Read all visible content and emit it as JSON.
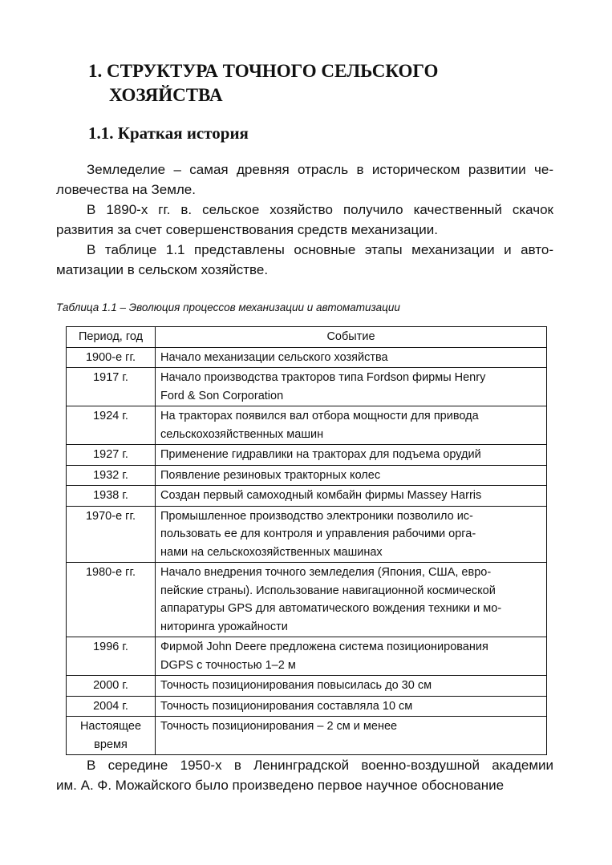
{
  "heading": {
    "line1": "1. СТРУКТУРА ТОЧНОГО СЕЛЬСКОГО",
    "line2": "ХОЗЯЙСТВА"
  },
  "subheading": "1.1. Краткая история",
  "intro_paragraphs": [
    [
      "Земледелие – самая древняя отрасль в историческом развитии че-",
      "ловечества на Земле."
    ],
    [
      "В 1890-х гг. в. сельское хозяйство получило качественный скачок",
      "развития за счет совершенствования средств механизации."
    ],
    [
      "В таблице 1.1 представлены основные этапы механизации и авто-",
      "матизации в сельском хозяйстве."
    ]
  ],
  "table": {
    "caption": "Таблица 1.1 – Эволюция процессов механизации и автоматизации",
    "headers": [
      "Период, год",
      "Событие"
    ],
    "rows": [
      {
        "period": [
          "1900-е гг."
        ],
        "event": [
          "Начало механизации сельского хозяйства"
        ]
      },
      {
        "period": [
          "1917 г."
        ],
        "event": [
          "Начало производства тракторов типа Fordson фирмы Henry",
          "Ford & Son Corporation"
        ]
      },
      {
        "period": [
          "1924 г."
        ],
        "event": [
          "На тракторах появился вал отбора мощности для привода",
          "сельскохозяйственных машин"
        ]
      },
      {
        "period": [
          "1927 г."
        ],
        "event": [
          "Применение гидравлики на тракторах для подъема орудий"
        ]
      },
      {
        "period": [
          "1932 г."
        ],
        "event": [
          "Появление резиновых тракторных колес"
        ]
      },
      {
        "period": [
          "1938 г."
        ],
        "event": [
          "Создан первый самоходный комбайн фирмы Massey Harris"
        ]
      },
      {
        "period": [
          "1970-е гг."
        ],
        "event": [
          "Промышленное производство электроники позволило ис-",
          "пользовать ее для контроля и управления рабочими орга-",
          "нами на сельскохозяйственных машинах"
        ]
      },
      {
        "period": [
          "1980-е гг."
        ],
        "event": [
          "Начало внедрения точного земледелия (Япония, США, евро-",
          "пейские страны). Использование навигационной космической",
          "аппаратуры GPS для автоматического вождения техники и мо-",
          "ниторинга урожайности"
        ]
      },
      {
        "period": [
          "1996 г."
        ],
        "event": [
          "Фирмой John Deere предложена система позиционирования",
          "DGPS с точностью 1–2 м"
        ]
      },
      {
        "period": [
          "2000 г."
        ],
        "event": [
          "Точность позиционирования повысилась до 30 см"
        ]
      },
      {
        "period": [
          "2004 г."
        ],
        "event": [
          "Точность позиционирования составляла 10 см"
        ]
      },
      {
        "period": [
          "Настоящее",
          "время"
        ],
        "event": [
          "Точность позиционирования – 2 см и менее"
        ]
      }
    ]
  },
  "closing_paragraph": [
    "В середине 1950-х в Ленинградской военно-воздушной академии",
    "им. А. Ф. Можайского было произведено первое научное обоснование"
  ]
}
